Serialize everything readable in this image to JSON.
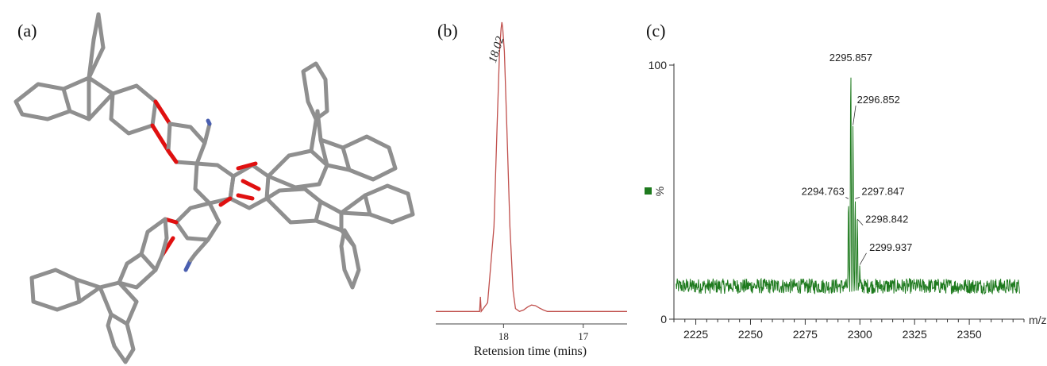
{
  "panels": {
    "a": {
      "label": "(a)"
    },
    "b": {
      "label": "(b)"
    },
    "c": {
      "label": "(c)"
    }
  },
  "colors": {
    "bond": "#8f8f8f",
    "bond_edge": "#6e6e6e",
    "oxygen": "#e01010",
    "nitrogen": "#4a5fb0",
    "chromatogram": "#c0504d",
    "spectrum": "#1e7a1e",
    "axis": "#333333"
  },
  "chart_data": [
    {
      "type": "line",
      "panel": "b",
      "title": "",
      "xlabel": "Retension time (mins)",
      "ylabel": "",
      "x_reversed": true,
      "xlim": [
        18.85,
        16.45
      ],
      "ylim": [
        0,
        100
      ],
      "xticks": [
        18,
        17
      ],
      "peak_labels": [
        {
          "x": 18.02,
          "text": "18.02"
        }
      ],
      "series": [
        {
          "x": [
            18.85,
            18.4,
            18.3,
            18.29,
            18.28,
            18.2,
            18.12,
            18.08,
            18.05,
            18.03,
            18.02,
            18.01,
            17.99,
            17.96,
            17.92,
            17.88,
            17.85,
            17.8,
            17.75,
            17.7,
            17.65,
            17.6,
            17.55,
            17.5,
            17.45,
            17.4,
            16.45
          ],
          "y": [
            1,
            1,
            1,
            6,
            1,
            4,
            30,
            65,
            90,
            98,
            100,
            98,
            90,
            65,
            30,
            8,
            2,
            1,
            1.5,
            2.5,
            3.2,
            3,
            2.2,
            1.5,
            1,
            1,
            1
          ]
        }
      ]
    },
    {
      "type": "line",
      "panel": "c",
      "title": "",
      "xlabel": "m/z",
      "ylabel": "%",
      "xlim": [
        2215,
        2375
      ],
      "ylim": [
        0,
        100
      ],
      "xticks": [
        2225,
        2250,
        2275,
        2300,
        2325,
        2350
      ],
      "yticks": [
        0,
        100
      ],
      "baseline_level": 13,
      "noise_amplitude": 3,
      "peaks": [
        {
          "x": 2294.763,
          "y": 48,
          "label": "2294.763"
        },
        {
          "x": 2295.857,
          "y": 100,
          "label": "2295.857"
        },
        {
          "x": 2296.852,
          "y": 77,
          "label": "2296.852"
        },
        {
          "x": 2297.847,
          "y": 48,
          "label": "2297.847"
        },
        {
          "x": 2298.842,
          "y": 40,
          "label": "2298.842"
        },
        {
          "x": 2299.937,
          "y": 22,
          "label": "2299.937"
        }
      ]
    }
  ]
}
